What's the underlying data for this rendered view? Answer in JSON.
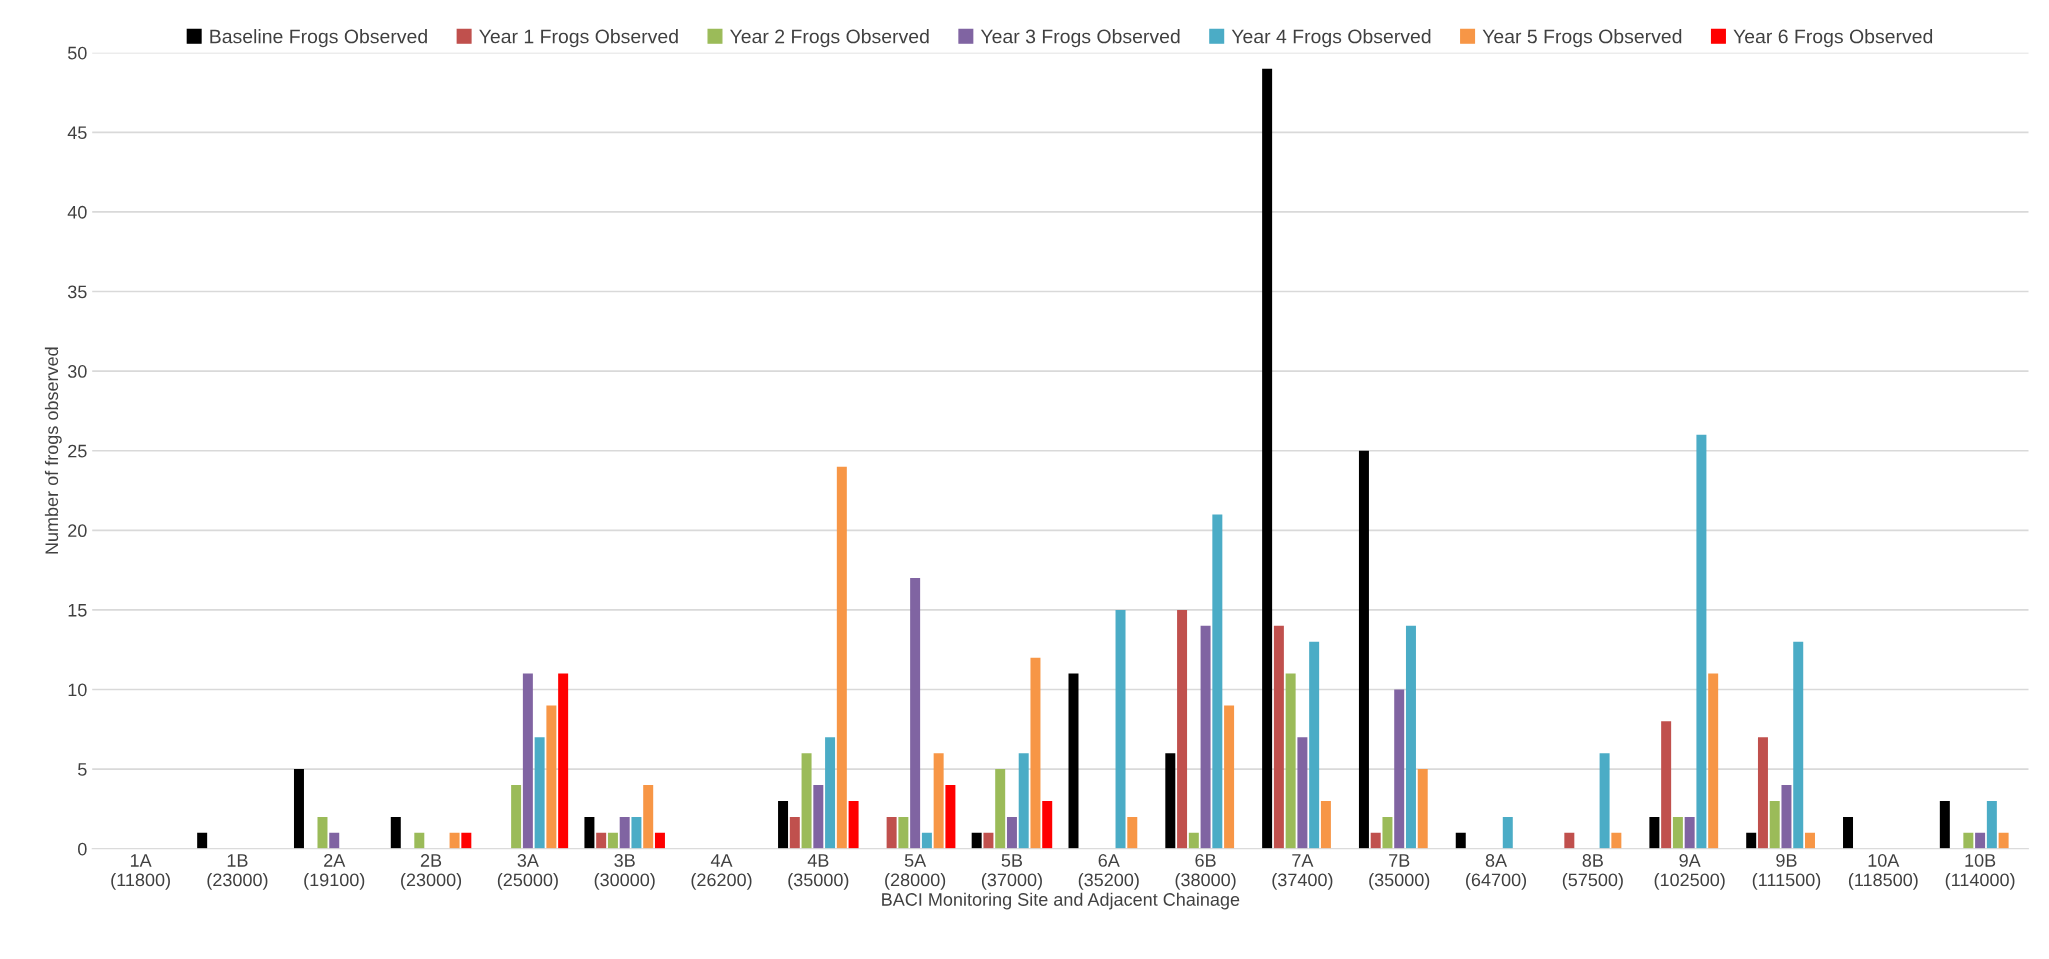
{
  "chart_data": {
    "type": "bar",
    "xlabel": "BACI Monitoring Site and Adjacent Chainage",
    "ylabel": "Number of frogs observed",
    "categories": [
      "1A\n(11800)",
      "1B\n(23000)",
      "2A\n(19100)",
      "2B\n(23000)",
      "3A\n(25000)",
      "3B\n(30000)",
      "4A\n(26200)",
      "4B\n(35000)",
      "5A\n(28000)",
      "5B\n(37000)",
      "6A\n(35200)",
      "6B\n(38000)",
      "7A\n(37400)",
      "7B\n(35000)",
      "8A\n(64700)",
      "8B\n(57500)",
      "9A\n(102500)",
      "9B\n(111500)",
      "10A\n(118500)",
      "10B\n(114000)"
    ],
    "series": [
      {
        "name": "Baseline Frogs Observed",
        "color": "#000000",
        "values": [
          0,
          1,
          5,
          2,
          0,
          2,
          0,
          3,
          0,
          1,
          11,
          6,
          49,
          25,
          1,
          0,
          2,
          1,
          2,
          3
        ]
      },
      {
        "name": "Year 1 Frogs Observed",
        "color": "#c0504d",
        "values": [
          0,
          0,
          0,
          0,
          0,
          1,
          0,
          2,
          2,
          1,
          0,
          15,
          14,
          1,
          0,
          1,
          8,
          7,
          0,
          0
        ]
      },
      {
        "name": "Year 2 Frogs Observed",
        "color": "#9bbb59",
        "values": [
          0,
          0,
          2,
          1,
          4,
          1,
          0,
          6,
          2,
          5,
          0,
          1,
          11,
          2,
          0,
          0,
          2,
          3,
          0,
          1
        ]
      },
      {
        "name": "Year 3 Frogs Observed",
        "color": "#8064a2",
        "values": [
          0,
          0,
          1,
          0,
          11,
          2,
          0,
          4,
          17,
          2,
          0,
          14,
          7,
          10,
          0,
          0,
          2,
          4,
          0,
          1
        ]
      },
      {
        "name": "Year 4 Frogs Observed",
        "color": "#4bacc6",
        "values": [
          0,
          0,
          0,
          0,
          7,
          2,
          0,
          7,
          1,
          6,
          15,
          21,
          13,
          14,
          2,
          6,
          26,
          13,
          0,
          3
        ]
      },
      {
        "name": "Year 5 Frogs Observed",
        "color": "#f79646",
        "values": [
          0,
          0,
          0,
          1,
          9,
          4,
          0,
          24,
          6,
          12,
          2,
          9,
          3,
          5,
          0,
          1,
          11,
          1,
          0,
          1
        ]
      },
      {
        "name": "Year 6 Frogs Observed",
        "color": "#ff0000",
        "values": [
          0,
          0,
          0,
          1,
          11,
          1,
          0,
          3,
          4,
          3,
          0,
          0,
          0,
          0,
          0,
          0,
          0,
          0,
          0,
          0
        ]
      }
    ],
    "ylim": [
      0,
      50
    ],
    "yticks": [
      0,
      5,
      10,
      15,
      20,
      25,
      30,
      35,
      40,
      45,
      50
    ],
    "grid": "y",
    "legend": "top"
  }
}
